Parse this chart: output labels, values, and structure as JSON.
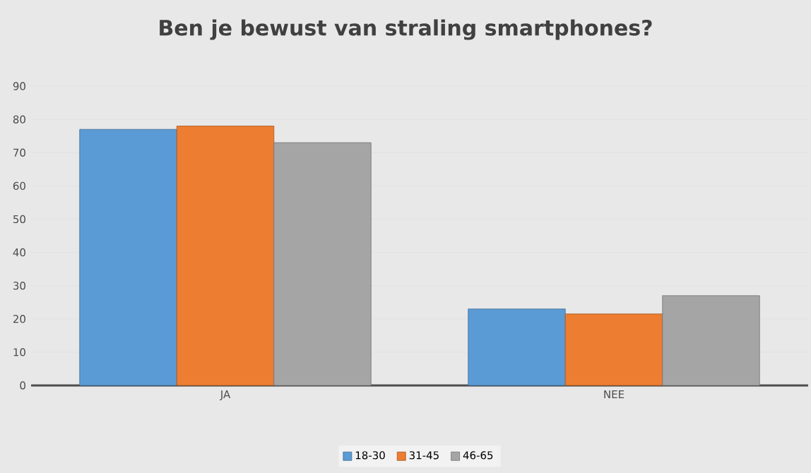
{
  "chart_data": {
    "type": "bar",
    "title": "Ben je bewust van straling smartphones?",
    "categories": [
      "JA",
      "NEE"
    ],
    "series": [
      {
        "name": "18-30",
        "color": "#5b9bd5",
        "values": [
          77,
          23
        ]
      },
      {
        "name": "31-45",
        "color": "#ed7d31",
        "values": [
          78,
          21.5
        ]
      },
      {
        "name": "46-65",
        "color": "#a5a5a5",
        "values": [
          73,
          27
        ]
      }
    ],
    "ylim": [
      0,
      90
    ],
    "yticks": [
      0,
      10,
      20,
      30,
      40,
      50,
      60,
      70,
      80,
      90
    ],
    "grid": "y",
    "legend": "bottom"
  }
}
